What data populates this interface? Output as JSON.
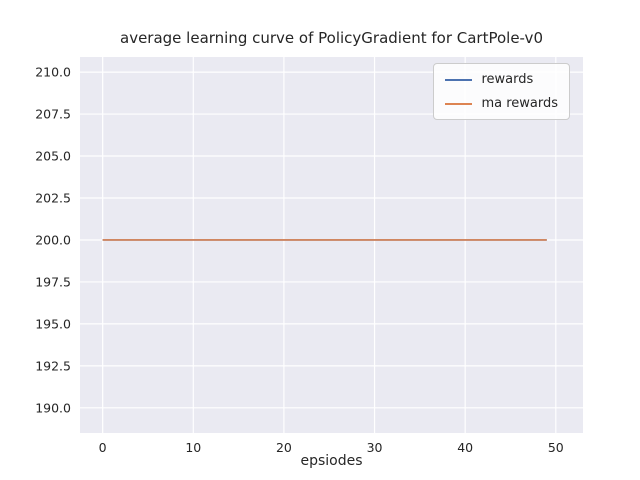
{
  "chart_data": {
    "type": "line",
    "title": "average learning curve of PolicyGradient for CartPole-v0",
    "xlabel": "epsiodes",
    "ylabel": "",
    "xlim": [
      -2.5,
      53.0
    ],
    "ylim": [
      188.5,
      210.9
    ],
    "x_ticks": [
      0,
      10,
      20,
      30,
      40,
      50
    ],
    "x_tick_labels": [
      "0",
      "10",
      "20",
      "30",
      "40",
      "50"
    ],
    "y_ticks": [
      190.0,
      192.5,
      195.0,
      197.5,
      200.0,
      202.5,
      205.0,
      207.5,
      210.0
    ],
    "y_tick_labels": [
      "190.0",
      "192.5",
      "195.0",
      "197.5",
      "200.0",
      "202.5",
      "205.0",
      "207.5",
      "210.0"
    ],
    "x": [
      0,
      49
    ],
    "series": [
      {
        "name": "rewards",
        "color": "#4c72b0",
        "values": [
          200.0,
          200.0
        ]
      },
      {
        "name": "ma rewards",
        "color": "#dd8452",
        "values": [
          200.0,
          200.0
        ]
      }
    ],
    "legend_position": "upper right",
    "grid": true,
    "plot_bg": "#eaeaf2",
    "grid_color": "#ffffff",
    "text_color": "#262626"
  }
}
